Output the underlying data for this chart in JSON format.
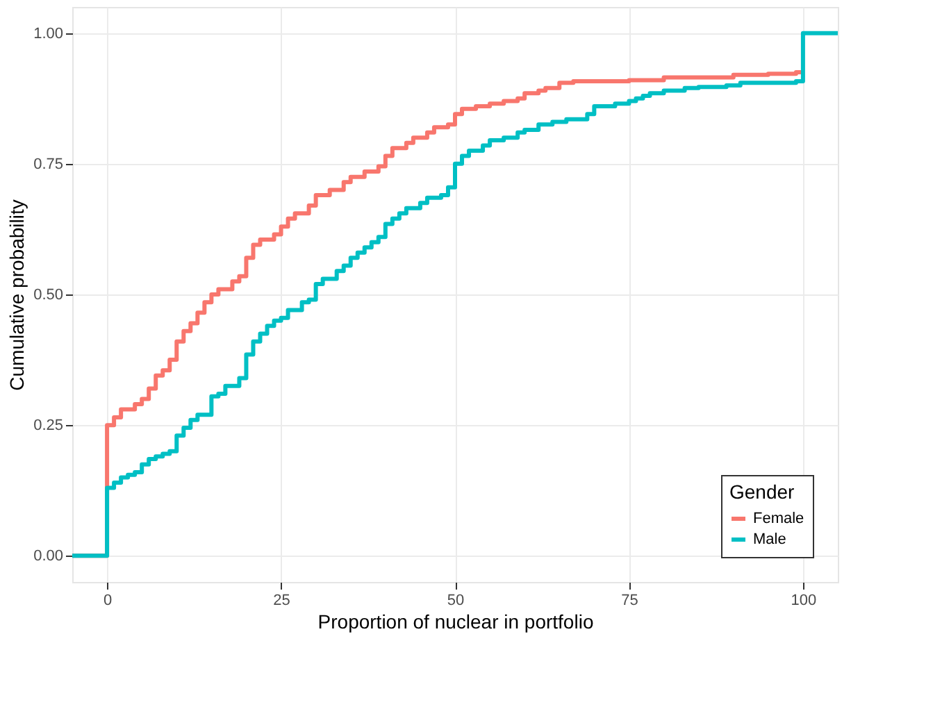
{
  "chart_data": {
    "type": "step",
    "xlabel": "Proportion of nuclear in portfolio",
    "ylabel": "Cumulative probability",
    "legend_title": "Gender",
    "legend": "bottom right",
    "grid": true,
    "line_style": "solid",
    "marker": "none",
    "xlim": [
      -5,
      105
    ],
    "ylim": [
      -0.05,
      1.05
    ],
    "xticks": [
      0,
      25,
      50,
      75,
      100
    ],
    "yticks": [
      {
        "value": 0,
        "label": "0.00"
      },
      {
        "value": 0.25,
        "label": "0.25"
      },
      {
        "value": 0.5,
        "label": "0.50"
      },
      {
        "value": 0.75,
        "label": "0.75"
      },
      {
        "value": 1,
        "label": "1.00"
      }
    ],
    "series": [
      {
        "name": "Female",
        "color": "#f8766d",
        "x": [
          -5,
          0,
          1,
          2,
          4,
          5,
          6,
          7,
          8,
          9,
          10,
          11,
          12,
          13,
          14,
          15,
          16,
          18,
          19,
          20,
          21,
          22,
          24,
          25,
          26,
          27,
          29,
          30,
          32,
          34,
          35,
          37,
          39,
          40,
          41,
          43,
          44,
          46,
          47,
          49,
          50,
          51,
          53,
          55,
          57,
          59,
          60,
          62,
          63,
          65,
          67,
          75,
          80,
          90,
          95,
          99,
          100
        ],
        "values": [
          0,
          0.25,
          0.265,
          0.28,
          0.29,
          0.3,
          0.32,
          0.345,
          0.355,
          0.375,
          0.41,
          0.43,
          0.445,
          0.465,
          0.485,
          0.5,
          0.51,
          0.525,
          0.535,
          0.57,
          0.595,
          0.605,
          0.615,
          0.63,
          0.645,
          0.655,
          0.67,
          0.69,
          0.7,
          0.715,
          0.725,
          0.735,
          0.745,
          0.765,
          0.78,
          0.79,
          0.8,
          0.81,
          0.82,
          0.825,
          0.845,
          0.855,
          0.86,
          0.865,
          0.87,
          0.875,
          0.885,
          0.89,
          0.895,
          0.905,
          0.908,
          0.91,
          0.915,
          0.92,
          0.922,
          0.925,
          0.925
        ]
      },
      {
        "name": "Male",
        "color": "#00bfc4",
        "x": [
          -5,
          0,
          1,
          2,
          3,
          4,
          5,
          6,
          7,
          8,
          9,
          10,
          11,
          12,
          13,
          15,
          16,
          17,
          19,
          20,
          21,
          22,
          23,
          24,
          25,
          26,
          28,
          29,
          30,
          31,
          33,
          34,
          35,
          36,
          37,
          38,
          39,
          40,
          41,
          42,
          43,
          45,
          46,
          48,
          49,
          50,
          51,
          52,
          54,
          55,
          57,
          59,
          60,
          62,
          64,
          66,
          69,
          70,
          73,
          75,
          76,
          77,
          78,
          80,
          83,
          85,
          89,
          91,
          99,
          100,
          105
        ],
        "values": [
          0,
          0.13,
          0.14,
          0.15,
          0.155,
          0.16,
          0.175,
          0.185,
          0.19,
          0.195,
          0.2,
          0.23,
          0.245,
          0.26,
          0.27,
          0.305,
          0.31,
          0.325,
          0.34,
          0.385,
          0.41,
          0.425,
          0.44,
          0.45,
          0.455,
          0.47,
          0.485,
          0.49,
          0.52,
          0.53,
          0.545,
          0.555,
          0.57,
          0.58,
          0.59,
          0.6,
          0.61,
          0.635,
          0.645,
          0.655,
          0.665,
          0.675,
          0.685,
          0.69,
          0.705,
          0.75,
          0.765,
          0.775,
          0.785,
          0.795,
          0.8,
          0.81,
          0.815,
          0.825,
          0.83,
          0.835,
          0.845,
          0.86,
          0.865,
          0.87,
          0.875,
          0.88,
          0.885,
          0.89,
          0.895,
          0.897,
          0.9,
          0.905,
          0.908,
          1,
          1
        ]
      }
    ]
  }
}
